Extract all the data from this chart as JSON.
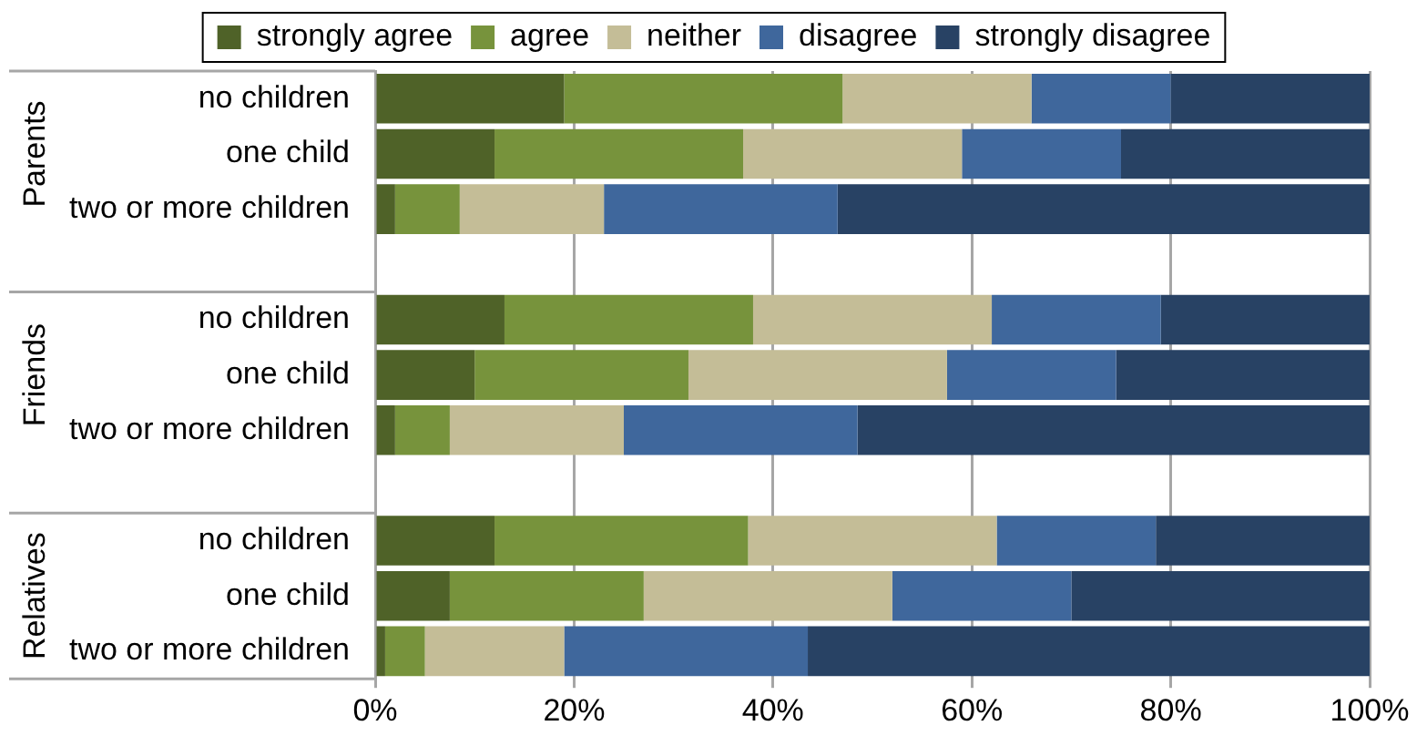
{
  "chart_data": {
    "type": "bar",
    "orientation": "horizontal",
    "stacked": true,
    "categories": [
      "no children",
      "one child",
      "two or more children",
      null,
      "no children",
      "one child",
      "two or more children",
      null,
      "no children",
      "one child",
      "two or more children"
    ],
    "series": [
      {
        "name": "strongly agree",
        "color": "#4f6228",
        "values": [
          19,
          12,
          2,
          null,
          13,
          10,
          2,
          null,
          12,
          7.5,
          1
        ]
      },
      {
        "name": "agree",
        "color": "#77933c",
        "values": [
          28,
          25,
          6.5,
          null,
          25,
          21.5,
          5.5,
          null,
          25.5,
          19.5,
          4
        ]
      },
      {
        "name": "neither",
        "color": "#c4bd97",
        "values": [
          19,
          22,
          14.5,
          null,
          24,
          26,
          17.5,
          null,
          25,
          25,
          14
        ]
      },
      {
        "name": "disagree",
        "color": "#3f679c",
        "values": [
          14,
          16,
          23.5,
          null,
          17,
          17,
          23.5,
          null,
          16,
          18,
          24.5
        ]
      },
      {
        "name": "strongly disagree",
        "color": "#284264",
        "values": [
          20,
          25,
          53.5,
          null,
          21,
          25.5,
          51.5,
          null,
          21.5,
          30,
          56.5
        ]
      }
    ],
    "xlim": [
      0,
      100
    ],
    "xticks": [
      {
        "value": 0,
        "label": "0%"
      },
      {
        "value": 20,
        "label": "20%"
      },
      {
        "value": 40,
        "label": "40%"
      },
      {
        "value": 60,
        "label": "60%"
      },
      {
        "value": 80,
        "label": "80%"
      },
      {
        "value": 100,
        "label": "100%"
      }
    ],
    "annotations": [
      "Parents",
      "Friends",
      "Relatives"
    ],
    "grid": "x",
    "legend": "top"
  }
}
